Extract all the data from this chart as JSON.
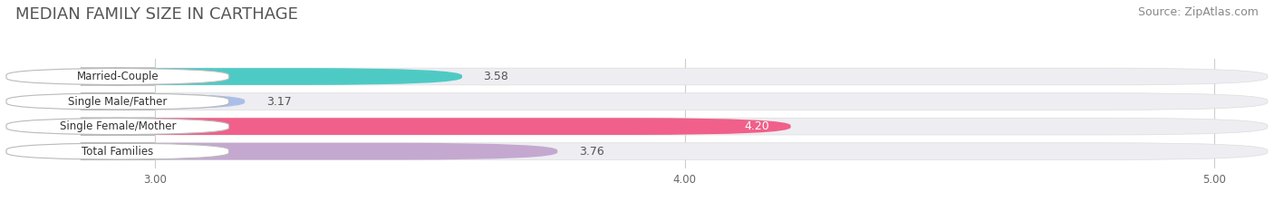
{
  "title": "MEDIAN FAMILY SIZE IN CARTHAGE",
  "source": "Source: ZipAtlas.com",
  "categories": [
    "Married-Couple",
    "Single Male/Father",
    "Single Female/Mother",
    "Total Families"
  ],
  "values": [
    3.58,
    3.17,
    4.2,
    3.76
  ],
  "bar_colors": [
    "#4ECAC5",
    "#AABFE8",
    "#F0608A",
    "#C4A8D0"
  ],
  "label_bg_colors": [
    "#FFFFFF",
    "#FFFFFF",
    "#FFFFFF",
    "#FFFFFF"
  ],
  "xlim": [
    2.72,
    5.1
  ],
  "xticks": [
    3.0,
    4.0,
    5.0
  ],
  "xtick_labels": [
    "3.00",
    "4.00",
    "5.00"
  ],
  "background_color": "#FFFFFF",
  "bar_bg_color": "#EDEDF2",
  "title_fontsize": 13,
  "source_fontsize": 9,
  "label_fontsize": 8.5,
  "value_fontsize": 9
}
